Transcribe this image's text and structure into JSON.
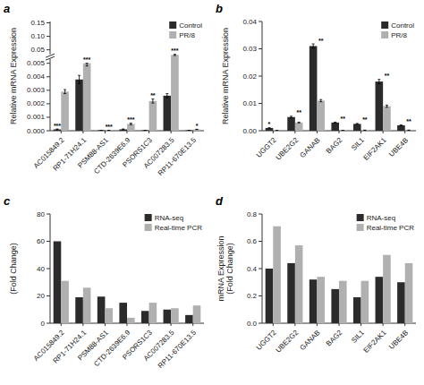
{
  "chart_data": [
    {
      "type": "bar",
      "title": "a",
      "ylabel": "Relative mRNA Expression",
      "categories": [
        "AC015849.2",
        "RP1-71H24.1",
        "PSM88-AS1",
        "CTD-2639E6.9",
        "PSORS1C3",
        "AC007283.5",
        "RP11-670E13.5"
      ],
      "series": [
        {
          "name": "Control",
          "color": "#2b2b2b",
          "values": [
            0.0001,
            0.0038,
            3e-05,
            0.0001,
            3e-05,
            0.0026,
            3e-05
          ],
          "errors": [
            3e-05,
            0.0003,
            3e-06,
            3e-05,
            3e-06,
            0.00015,
            3e-06
          ]
        },
        {
          "name": "PR/8",
          "color": "#b0b0b0",
          "values": [
            0.0029,
            0.005,
            3e-05,
            0.0005,
            0.0022,
            0.033,
            0.0001
          ],
          "errors": [
            0.00015,
            0.0002,
            3e-06,
            6e-05,
            0.00015,
            0.0018,
            1e-05
          ]
        }
      ],
      "ylim": [
        0,
        0.155
      ],
      "yticks": [
        {
          "value": 0,
          "label": "0.000"
        },
        0.001,
        0.002,
        0.003,
        0.004,
        0.005,
        0.05,
        {
          "value": 0.1,
          "label": "0.10"
        },
        0.15
      ],
      "legend": "upper right",
      "annotations": [
        {
          "text": "***",
          "category": "AC015849.2",
          "series": "Control"
        },
        {
          "text": "***",
          "category": "RP1-71H24.1",
          "series": "PR/8"
        },
        {
          "text": "***",
          "category": "PSM88-AS1",
          "series": "PR/8"
        },
        {
          "text": "***",
          "category": "CTD-2639E6.9",
          "series": "PR/8"
        },
        {
          "text": "**",
          "category": "PSORS1C3",
          "series": "PR/8"
        },
        {
          "text": "***",
          "category": "AC007283.5",
          "series": "PR/8"
        },
        {
          "text": "*",
          "category": "RP11-670E13.5",
          "series": "PR/8"
        }
      ]
    },
    {
      "type": "bar",
      "title": "b",
      "ylabel": "Relative mRNA Expression",
      "categories": [
        "UGGT2",
        "UBE2G2",
        "GANAB",
        "BAG2",
        "SIL1",
        "EIF2AK1",
        "UBE4B"
      ],
      "series": [
        {
          "name": "Control",
          "color": "#2b2b2b",
          "values": [
            0.001,
            0.005,
            0.031,
            0.003,
            0.0025,
            0.018,
            0.002
          ],
          "errors": [
            8e-05,
            0.0003,
            0.0008,
            0.00015,
            0.00015,
            0.0008,
            8e-05
          ]
        },
        {
          "name": "PR/8",
          "color": "#b0b0b0",
          "values": [
            0.0001,
            0.003,
            0.011,
            0.0001,
            0.0002,
            0.009,
            0.0002
          ],
          "errors": [
            3e-05,
            0.00015,
            0.0004,
            1e-05,
            1e-05,
            0.0004,
            1e-05
          ]
        }
      ],
      "ylim": [
        0,
        0.04
      ],
      "yticks": [
        {
          "value": 0,
          "label": "0.00"
        },
        0.01,
        0.02,
        0.03,
        0.04
      ],
      "legend": "upper right",
      "annotations": [
        {
          "text": "*",
          "category": "UGGT2",
          "series": "Control"
        },
        {
          "text": "**",
          "category": "UBE2G2",
          "series": "PR/8"
        },
        {
          "text": "**",
          "category": "GANAB",
          "series": "PR/8"
        },
        {
          "text": "**",
          "category": "BAG2",
          "series": "PR/8"
        },
        {
          "text": "**",
          "category": "SIL1",
          "series": "PR/8"
        },
        {
          "text": "**",
          "category": "EIF2AK1",
          "series": "PR/8"
        },
        {
          "text": "**",
          "category": "UBE4B",
          "series": "PR/8"
        }
      ]
    },
    {
      "type": "bar",
      "title": "c",
      "ylabel": "(Fold Change)",
      "categories": [
        "AC015849.2",
        "RP1-71H24.1",
        "PSM88-AS1",
        "CTD-2639E6.9",
        "PSORS1C3",
        "AC007283.5",
        "RP11-670E13.5"
      ],
      "series": [
        {
          "name": "RNA-seq",
          "color": "#2b2b2b",
          "values": [
            60,
            19,
            19.5,
            15,
            9,
            10,
            6
          ]
        },
        {
          "name": "Real-time PCR",
          "color": "#b0b0b0",
          "values": [
            31,
            26,
            11,
            4,
            15,
            11,
            13
          ]
        }
      ],
      "ylim": [
        0,
        80
      ],
      "yticks": [
        0,
        20,
        40,
        60,
        80
      ],
      "legend": "upper right"
    },
    {
      "type": "bar",
      "title": "d",
      "ylabel": "mRNA Expression\n(Fold Change)",
      "categories": [
        "UGGT2",
        "UBE2G2",
        "GANAB",
        "BAG2",
        "SIL1",
        "EIF2AK1",
        "UBE4B"
      ],
      "series": [
        {
          "name": "RNA-seq",
          "color": "#2b2b2b",
          "values": [
            0.4,
            0.44,
            0.32,
            0.25,
            0.19,
            0.34,
            0.3
          ]
        },
        {
          "name": "Real-time PCR",
          "color": "#b0b0b0",
          "values": [
            0.71,
            0.57,
            0.34,
            0.31,
            0.31,
            0.5,
            0.44
          ]
        }
      ],
      "ylim": [
        0,
        0.8
      ],
      "yticks": [
        {
          "value": 0,
          "label": "0.0"
        },
        0.2,
        0.4,
        0.6,
        0.8
      ],
      "legend": "upper right"
    }
  ]
}
